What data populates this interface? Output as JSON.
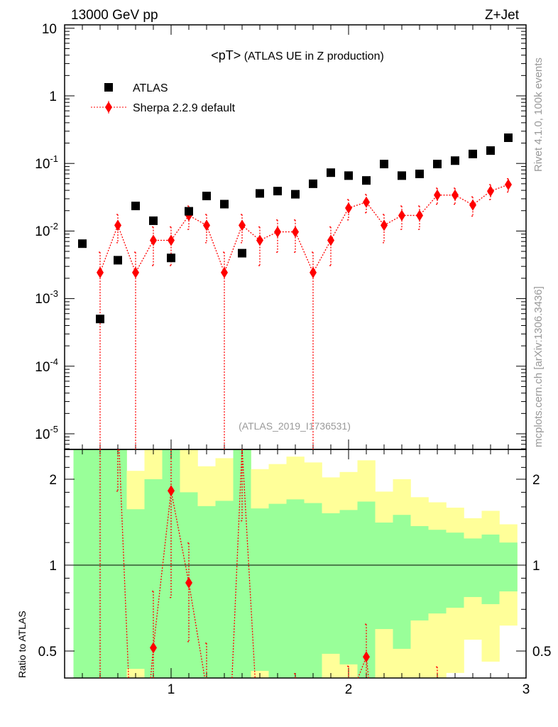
{
  "header": {
    "energy_label": "13000 GeV pp",
    "process_label": "Z+Jet",
    "title_main": "<pT>",
    "title_sub": "(ATLAS UE in Z production)",
    "side_rivet": "Rivet 4.1.0,  100k events",
    "side_mcplots": "mcplots.cern.ch [arXiv:1306.3436]",
    "analysis_id": "(ATLAS_2019_I1736531)"
  },
  "colors": {
    "data": "#000000",
    "mc": "#ff0000",
    "stat_band": "#99ff99",
    "total_band": "#ffff99"
  },
  "chart_data": [
    {
      "type": "scatter",
      "title": "<pT> (ATLAS UE in Z production)",
      "xlabel": "",
      "ylabel": "",
      "yscale": "log",
      "xlim": [
        0.4,
        3.0
      ],
      "ylim": [
        5.9e-06,
        11.2
      ],
      "x_ticks": [
        "1",
        "2",
        "3"
      ],
      "y_ticks": [
        "10",
        "1",
        "10^-1",
        "10^-2",
        "10^-3",
        "10^-4",
        "10^-5"
      ],
      "legend": "top-left",
      "x": [
        0.5,
        0.6,
        0.7,
        0.8,
        0.9,
        1.0,
        1.1,
        1.2,
        1.3,
        1.4,
        1.5,
        1.6,
        1.7,
        1.8,
        1.9,
        2.0,
        2.1,
        2.2,
        2.3,
        2.4,
        2.5,
        2.6,
        2.7,
        2.8,
        2.9
      ],
      "series": [
        {
          "name": "ATLAS",
          "values": [
            0.0065,
            0.0005,
            0.0037,
            0.0235,
            0.0142,
            0.004,
            0.0196,
            0.033,
            0.025,
            0.0047,
            0.036,
            0.039,
            0.035,
            0.05,
            0.073,
            0.066,
            0.056,
            0.098,
            0.066,
            0.07,
            0.098,
            0.11,
            0.138,
            0.155,
            0.24
          ]
        },
        {
          "name": "Sherpa 2.2.9 default",
          "values": [
            null,
            0.00243,
            0.01215,
            0.00243,
            0.00729,
            0.00729,
            0.017,
            0.01215,
            0.00243,
            0.01215,
            0.00729,
            0.00972,
            0.00972,
            0.00243,
            0.00729,
            0.0219,
            0.0267,
            0.01215,
            0.017,
            0.017,
            0.034,
            0.034,
            0.0243,
            0.0389,
            0.0486
          ],
          "errors": [
            null,
            0.00243,
            0.00543,
            0.00243,
            0.00421,
            0.00421,
            0.00643,
            0.00543,
            0.00243,
            0.00543,
            0.00421,
            0.00486,
            0.00486,
            0.00243,
            0.00421,
            0.00729,
            0.00806,
            0.00543,
            0.00643,
            0.00643,
            0.00909,
            0.00909,
            0.00768,
            0.00972,
            0.01087
          ]
        }
      ]
    },
    {
      "type": "line",
      "title": "",
      "xlabel": "",
      "ylabel": "Ratio to ATLAS",
      "yscale": "log",
      "xlim": [
        0.4,
        3.0
      ],
      "ylim": [
        0.4,
        2.54
      ],
      "y_ticks": [
        "0.5",
        "1",
        "2"
      ],
      "bin_width": 0.1,
      "stat_band_up": [
        10,
        10,
        10,
        1.57,
        2.0,
        10,
        1.8,
        1.61,
        1.68,
        10,
        1.58,
        1.64,
        1.7,
        1.65,
        1.52,
        1.56,
        1.67,
        1.41,
        1.5,
        1.37,
        1.33,
        1.3,
        1.24,
        1.28,
        1.2
      ],
      "stat_band_down": [
        0.1,
        0.1,
        0.1,
        0.433,
        0.1,
        0.1,
        0.1,
        0.1,
        0.1,
        0.1,
        0.426,
        0.1,
        0.1,
        0.1,
        0.489,
        0.449,
        0.1,
        0.597,
        0.509,
        0.64,
        0.677,
        0.709,
        0.773,
        0.73,
        0.809
      ],
      "total_band_up": [
        10,
        10,
        10,
        2.14,
        10,
        10,
        10,
        2.22,
        2.37,
        10,
        2.17,
        2.26,
        2.4,
        2.29,
        2.03,
        2.12,
        2.33,
        1.81,
        2.0,
        1.73,
        1.66,
        1.59,
        1.46,
        1.55,
        1.39
      ],
      "total_band_down": [
        0.1,
        0.1,
        0.1,
        0.1,
        0.1,
        0.1,
        0.1,
        0.1,
        0.1,
        0.1,
        0.1,
        0.1,
        0.1,
        0.1,
        0.1,
        0.1,
        0.1,
        0.1,
        0.1,
        0.1,
        0.1,
        0.419,
        0.548,
        0.459,
        0.614
      ]
    }
  ]
}
